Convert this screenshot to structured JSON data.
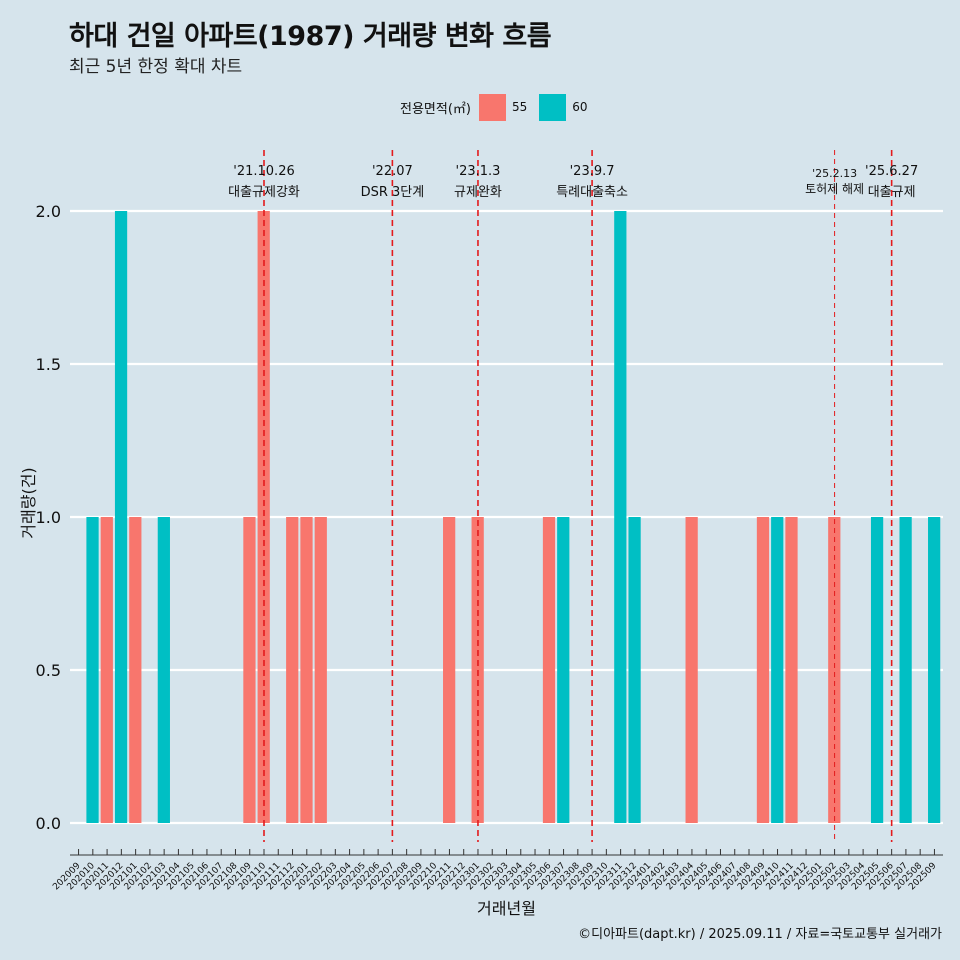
{
  "chart_data": {
    "type": "bar",
    "title": "하대 건일 아파트(1987) 거래량 변화 흐름",
    "subtitle": "최근 5년 한정 확대 차트",
    "xlabel": "거래년월",
    "ylabel": "거래량(건)",
    "ylim": [
      0,
      2
    ],
    "yticks": [
      "0.0",
      "0.5",
      "1.0",
      "1.5",
      "2.0"
    ],
    "ytick_values": [
      0,
      0.5,
      1.0,
      1.5,
      2.0
    ],
    "legend": {
      "title": "전용면적(㎡)",
      "entries": [
        {
          "name": "55",
          "color": "#f8766d"
        },
        {
          "name": "60",
          "color": "#00bfc4"
        }
      ]
    },
    "categories": [
      "202009",
      "202010",
      "202011",
      "202012",
      "202101",
      "202102",
      "202103",
      "202104",
      "202105",
      "202106",
      "202107",
      "202108",
      "202109",
      "202110",
      "202111",
      "202112",
      "202201",
      "202202",
      "202203",
      "202204",
      "202205",
      "202206",
      "202207",
      "202208",
      "202209",
      "202210",
      "202211",
      "202212",
      "202301",
      "202302",
      "202303",
      "202304",
      "202305",
      "202306",
      "202307",
      "202308",
      "202309",
      "202310",
      "202311",
      "202312",
      "202401",
      "202402",
      "202403",
      "202404",
      "202405",
      "202406",
      "202407",
      "202408",
      "202409",
      "202410",
      "202411",
      "202412",
      "202501",
      "202502",
      "202503",
      "202504",
      "202505",
      "202506",
      "202507",
      "202508",
      "202509"
    ],
    "series": [
      {
        "name": "55",
        "color": "#f8766d",
        "values": [
          0,
          0,
          1,
          0,
          1,
          0,
          0,
          0,
          0,
          0,
          0,
          0,
          1,
          2,
          0,
          1,
          1,
          1,
          0,
          0,
          0,
          0,
          0,
          0,
          0,
          0,
          1,
          0,
          1,
          0,
          0,
          0,
          0,
          1,
          0,
          0,
          0,
          0,
          0,
          0,
          0,
          0,
          0,
          1,
          0,
          0,
          0,
          0,
          1,
          0,
          1,
          0,
          0,
          1,
          0,
          0,
          0,
          0,
          0,
          0,
          0
        ]
      },
      {
        "name": "60",
        "color": "#00bfc4",
        "values": [
          0,
          1,
          0,
          2,
          0,
          0,
          1,
          0,
          0,
          0,
          0,
          0,
          0,
          0,
          0,
          0,
          0,
          0,
          0,
          0,
          0,
          0,
          0,
          0,
          0,
          0,
          0,
          0,
          0,
          0,
          0,
          0,
          0,
          0,
          1,
          0,
          0,
          0,
          2,
          1,
          0,
          0,
          0,
          0,
          0,
          0,
          0,
          0,
          0,
          1,
          0,
          0,
          0,
          0,
          0,
          0,
          1,
          0,
          1,
          0,
          1
        ]
      }
    ],
    "events": [
      {
        "date": "'21.10.26",
        "label": "대출규제강화",
        "at": "202110",
        "dash": "long",
        "small": false
      },
      {
        "date": "'22.07",
        "label": "DSR 3단계",
        "at": "202207",
        "dash": "long",
        "small": false
      },
      {
        "date": "'23.1.3",
        "label": "규제완화",
        "at": "202301",
        "dash": "long",
        "small": false
      },
      {
        "date": "'23.9.7",
        "label": "특례대출축소",
        "at": "202309",
        "dash": "long",
        "small": false
      },
      {
        "date": "'25.2.13",
        "label": "토허제 해제",
        "at": "202502",
        "dash": "short",
        "small": true
      },
      {
        "date": "'25.6.27",
        "label": "대출규제",
        "at": "202506",
        "dash": "long",
        "small": false
      }
    ]
  },
  "caption": "©디아파트(dapt.kr) / 2025.09.11 / 자료=국토교통부 실거래가"
}
